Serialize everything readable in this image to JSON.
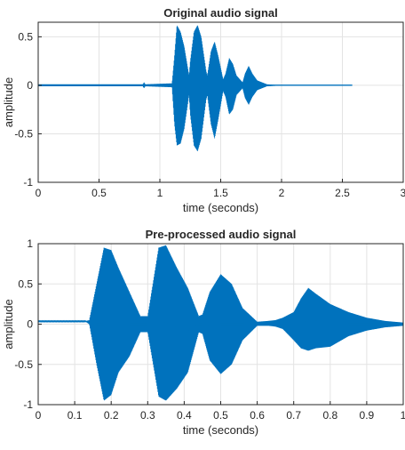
{
  "chart_data": [
    {
      "type": "line",
      "title": "Original audio signal",
      "xlabel": "time (seconds)",
      "ylabel": "amplitude",
      "xlim": [
        0,
        3
      ],
      "ylim": [
        -1,
        0.65
      ],
      "xticks": [
        0,
        0.5,
        1,
        1.5,
        2,
        2.5,
        3
      ],
      "xtick_labels": [
        "0",
        "0.5",
        "1",
        "1.5",
        "2",
        "2.5",
        "3"
      ],
      "yticks": [
        0.5,
        0,
        -0.5,
        -1
      ],
      "ytick_labels": [
        "0.5",
        "0",
        "-0.5",
        "-1"
      ],
      "grid": true,
      "color": "#0072bd",
      "signal_extent": [
        0,
        2.58
      ],
      "envelope": {
        "x": [
          0,
          0.86,
          0.87,
          0.88,
          1.1,
          1.12,
          1.14,
          1.17,
          1.2,
          1.24,
          1.25,
          1.28,
          1.31,
          1.34,
          1.38,
          1.39,
          1.42,
          1.45,
          1.48,
          1.52,
          1.54,
          1.57,
          1.6,
          1.63,
          1.68,
          1.7,
          1.73,
          1.76,
          1.8,
          1.88,
          1.95,
          2.58
        ],
        "upper": [
          0.01,
          0.01,
          0.03,
          0.01,
          0.02,
          0.3,
          0.62,
          0.55,
          0.4,
          0.1,
          0.25,
          0.55,
          0.62,
          0.5,
          0.15,
          0.1,
          0.35,
          0.45,
          0.3,
          0.06,
          0.12,
          0.28,
          0.22,
          0.1,
          0.03,
          0.12,
          0.2,
          0.12,
          0.05,
          0.01,
          0.005,
          0.005
        ],
        "lower": [
          -0.01,
          -0.01,
          -0.03,
          -0.01,
          -0.02,
          -0.4,
          -0.62,
          -0.6,
          -0.45,
          -0.1,
          -0.3,
          -0.62,
          -0.68,
          -0.55,
          -0.15,
          -0.1,
          -0.4,
          -0.55,
          -0.35,
          -0.06,
          -0.12,
          -0.3,
          -0.25,
          -0.1,
          -0.03,
          -0.13,
          -0.2,
          -0.12,
          -0.05,
          -0.01,
          -0.005,
          -0.005
        ]
      }
    },
    {
      "type": "line",
      "title": "Pre-processed audio signal",
      "xlabel": "time (seconds)",
      "ylabel": "amplitude",
      "xlim": [
        0,
        1
      ],
      "ylim": [
        -1,
        1
      ],
      "xticks": [
        0,
        0.1,
        0.2,
        0.3,
        0.4,
        0.5,
        0.6,
        0.7,
        0.8,
        0.9,
        1
      ],
      "xtick_labels": [
        "0",
        "0.1",
        "0.2",
        "0.3",
        "0.4",
        "0.5",
        "0.6",
        "0.7",
        "0.8",
        "0.9",
        "1"
      ],
      "yticks": [
        1,
        0.5,
        0,
        -0.5,
        -1
      ],
      "ytick_labels": [
        "1",
        "0.5",
        "0",
        "-0.5",
        "-1"
      ],
      "grid": true,
      "color": "#0072bd",
      "signal_extent": [
        0,
        1
      ],
      "envelope": {
        "x": [
          0,
          0.13,
          0.14,
          0.16,
          0.18,
          0.2,
          0.22,
          0.25,
          0.28,
          0.3,
          0.33,
          0.35,
          0.38,
          0.41,
          0.44,
          0.45,
          0.47,
          0.5,
          0.53,
          0.56,
          0.6,
          0.63,
          0.65,
          0.67,
          0.7,
          0.72,
          0.74,
          0.76,
          0.8,
          0.85,
          0.9,
          0.95,
          1
        ],
        "upper": [
          0.04,
          0.04,
          0.05,
          0.5,
          0.95,
          0.92,
          0.7,
          0.4,
          0.1,
          0.1,
          0.95,
          0.98,
          0.7,
          0.45,
          0.1,
          0.12,
          0.4,
          0.62,
          0.5,
          0.2,
          0.03,
          0.04,
          0.05,
          0.08,
          0.15,
          0.32,
          0.45,
          0.38,
          0.25,
          0.15,
          0.08,
          0.04,
          0.02
        ],
        "lower": [
          0.03,
          0.03,
          0.0,
          -0.5,
          -0.95,
          -0.88,
          -0.6,
          -0.4,
          -0.1,
          -0.1,
          -0.9,
          -0.95,
          -0.8,
          -0.6,
          -0.1,
          -0.12,
          -0.45,
          -0.62,
          -0.5,
          -0.2,
          -0.02,
          -0.02,
          -0.03,
          -0.06,
          -0.2,
          -0.3,
          -0.33,
          -0.3,
          -0.28,
          -0.15,
          -0.08,
          -0.04,
          -0.02
        ]
      }
    }
  ]
}
